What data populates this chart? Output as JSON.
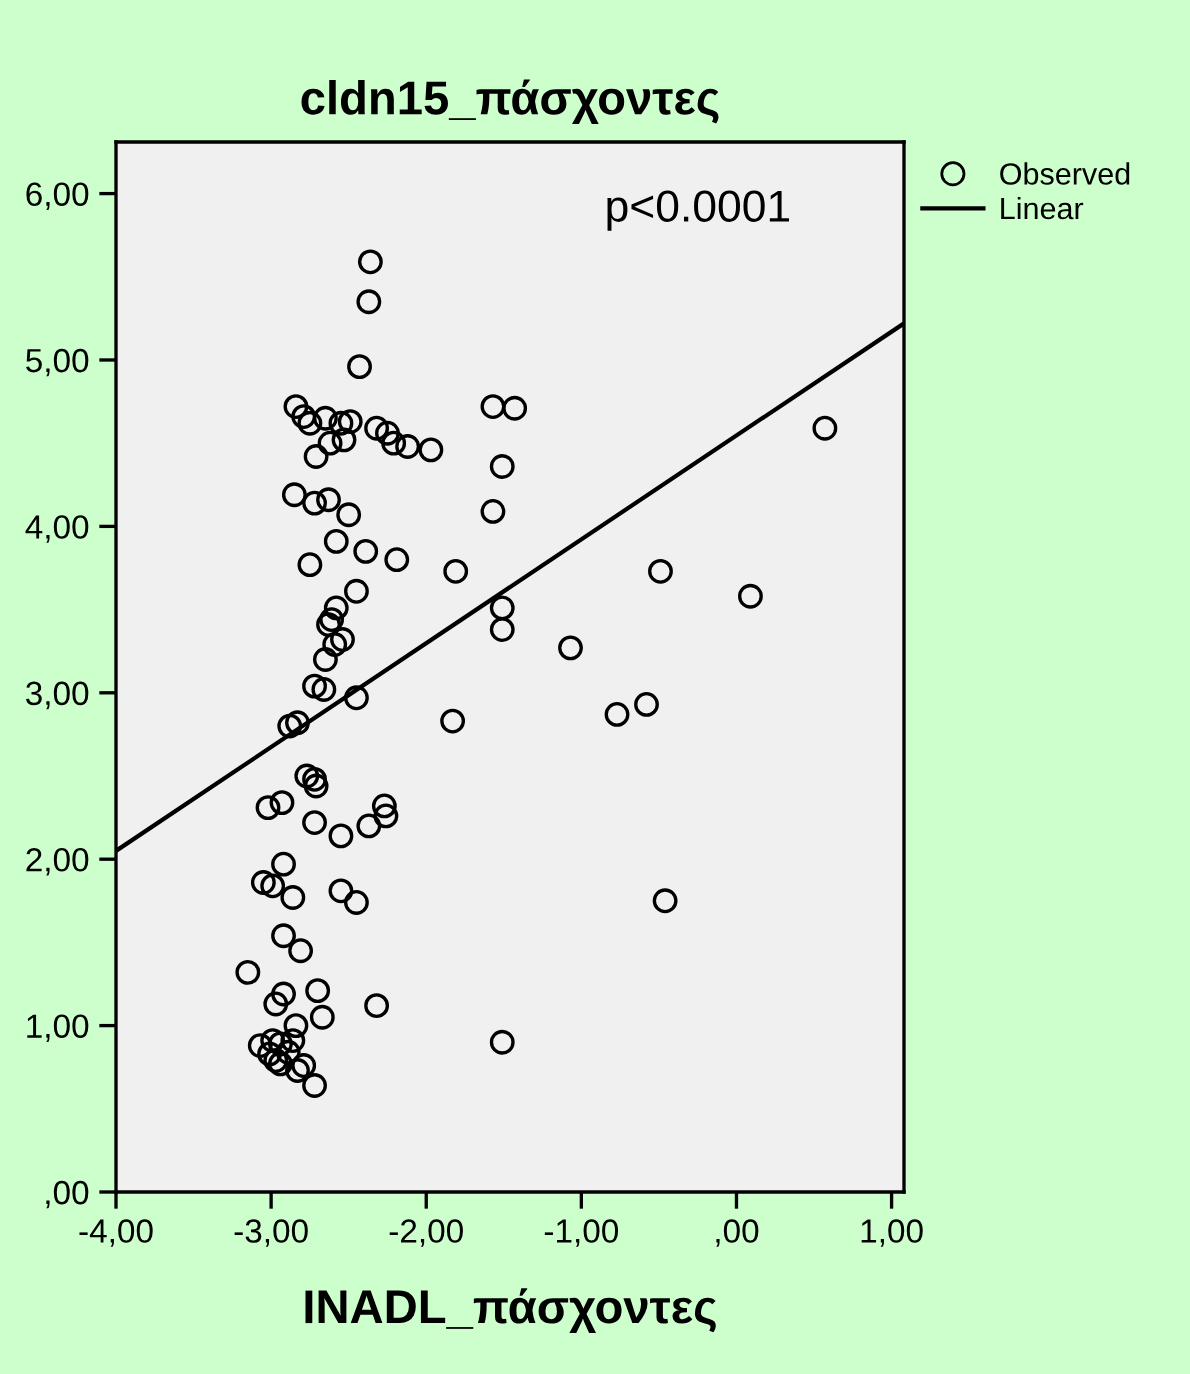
{
  "chart_data": {
    "type": "scatter",
    "title": "cldn15_πάσχοντες",
    "xlabel": "INADL_πάσχοντες",
    "annotations": [
      "p<0.0001"
    ],
    "xlim": [
      -4.0,
      1.08
    ],
    "ylim": [
      0,
      6.31
    ],
    "xticks": [
      {
        "value": -4,
        "label": "-4,00"
      },
      {
        "value": -3,
        "label": "-3,00"
      },
      {
        "value": -2,
        "label": "-2,00"
      },
      {
        "value": -1,
        "label": "-1,00"
      },
      {
        "value": 0,
        "label": ",00"
      },
      {
        "value": 1,
        "label": "1,00"
      }
    ],
    "yticks": [
      {
        "value": 0,
        "label": ",00"
      },
      {
        "value": 1,
        "label": "1,00"
      },
      {
        "value": 2,
        "label": "2,00"
      },
      {
        "value": 3,
        "label": "3,00"
      },
      {
        "value": 4,
        "label": "4,00"
      },
      {
        "value": 5,
        "label": "5,00"
      },
      {
        "value": 6,
        "label": "6,00"
      }
    ],
    "grid": false,
    "legend": "top right",
    "series": [
      {
        "name": "Observed",
        "marker": "circle",
        "color": "#000000",
        "x": [
          -2.36,
          -2.37,
          -2.43,
          -2.84,
          -2.79,
          -2.75,
          -2.65,
          -2.55,
          -2.49,
          -2.53,
          -2.62,
          -2.71,
          -2.32,
          -2.25,
          -2.21,
          -2.12,
          -1.97,
          -1.57,
          -1.43,
          -1.51,
          -1.57,
          -2.85,
          -2.72,
          -2.63,
          -2.5,
          -2.58,
          -2.75,
          -2.39,
          -2.19,
          -1.81,
          -2.45,
          -2.58,
          -2.61,
          -2.63,
          -2.54,
          -2.59,
          -2.65,
          -2.66,
          -2.72,
          -2.83,
          -2.88,
          -2.45,
          -1.83,
          -1.51,
          -1.51,
          -1.07,
          -0.49,
          0.09,
          -0.77,
          -0.58,
          0.57,
          -0.46,
          -2.77,
          -2.72,
          -2.71,
          -3.02,
          -2.93,
          -2.72,
          -2.55,
          -2.37,
          -2.27,
          -2.26,
          -2.92,
          -3.05,
          -2.99,
          -2.86,
          -2.55,
          -2.45,
          -2.92,
          -2.81,
          -3.15,
          -2.92,
          -2.97,
          -2.7,
          -2.67,
          -2.32,
          -1.51,
          -3.07,
          -2.94,
          -2.99,
          -2.89,
          -2.84,
          -2.94,
          -2.83,
          -2.79,
          -2.72,
          -3.01,
          -2.86,
          -2.97
        ],
        "values": [
          5.59,
          5.35,
          4.96,
          4.72,
          4.66,
          4.62,
          4.65,
          4.62,
          4.63,
          4.52,
          4.5,
          4.42,
          4.59,
          4.56,
          4.5,
          4.48,
          4.46,
          4.72,
          4.71,
          4.36,
          4.09,
          4.19,
          4.14,
          4.16,
          4.07,
          3.91,
          3.77,
          3.85,
          3.8,
          3.73,
          3.61,
          3.51,
          3.44,
          3.41,
          3.32,
          3.29,
          3.2,
          3.02,
          3.04,
          2.82,
          2.8,
          2.97,
          2.83,
          3.51,
          3.38,
          3.27,
          3.73,
          3.58,
          2.87,
          2.93,
          4.59,
          1.75,
          2.5,
          2.48,
          2.44,
          2.31,
          2.34,
          2.22,
          2.14,
          2.2,
          2.32,
          2.26,
          1.97,
          1.86,
          1.84,
          1.77,
          1.81,
          1.74,
          1.54,
          1.45,
          1.32,
          1.19,
          1.13,
          1.21,
          1.05,
          1.12,
          0.9,
          0.88,
          0.89,
          0.91,
          0.84,
          1.0,
          0.77,
          0.73,
          0.76,
          0.64,
          0.83,
          0.91,
          0.79
        ]
      },
      {
        "name": "Linear",
        "type": "line",
        "marker": "none",
        "color": "#000000",
        "line_style": "solid",
        "x": [
          -4.0,
          1.08
        ],
        "values": [
          2.05,
          5.22
        ]
      }
    ]
  }
}
